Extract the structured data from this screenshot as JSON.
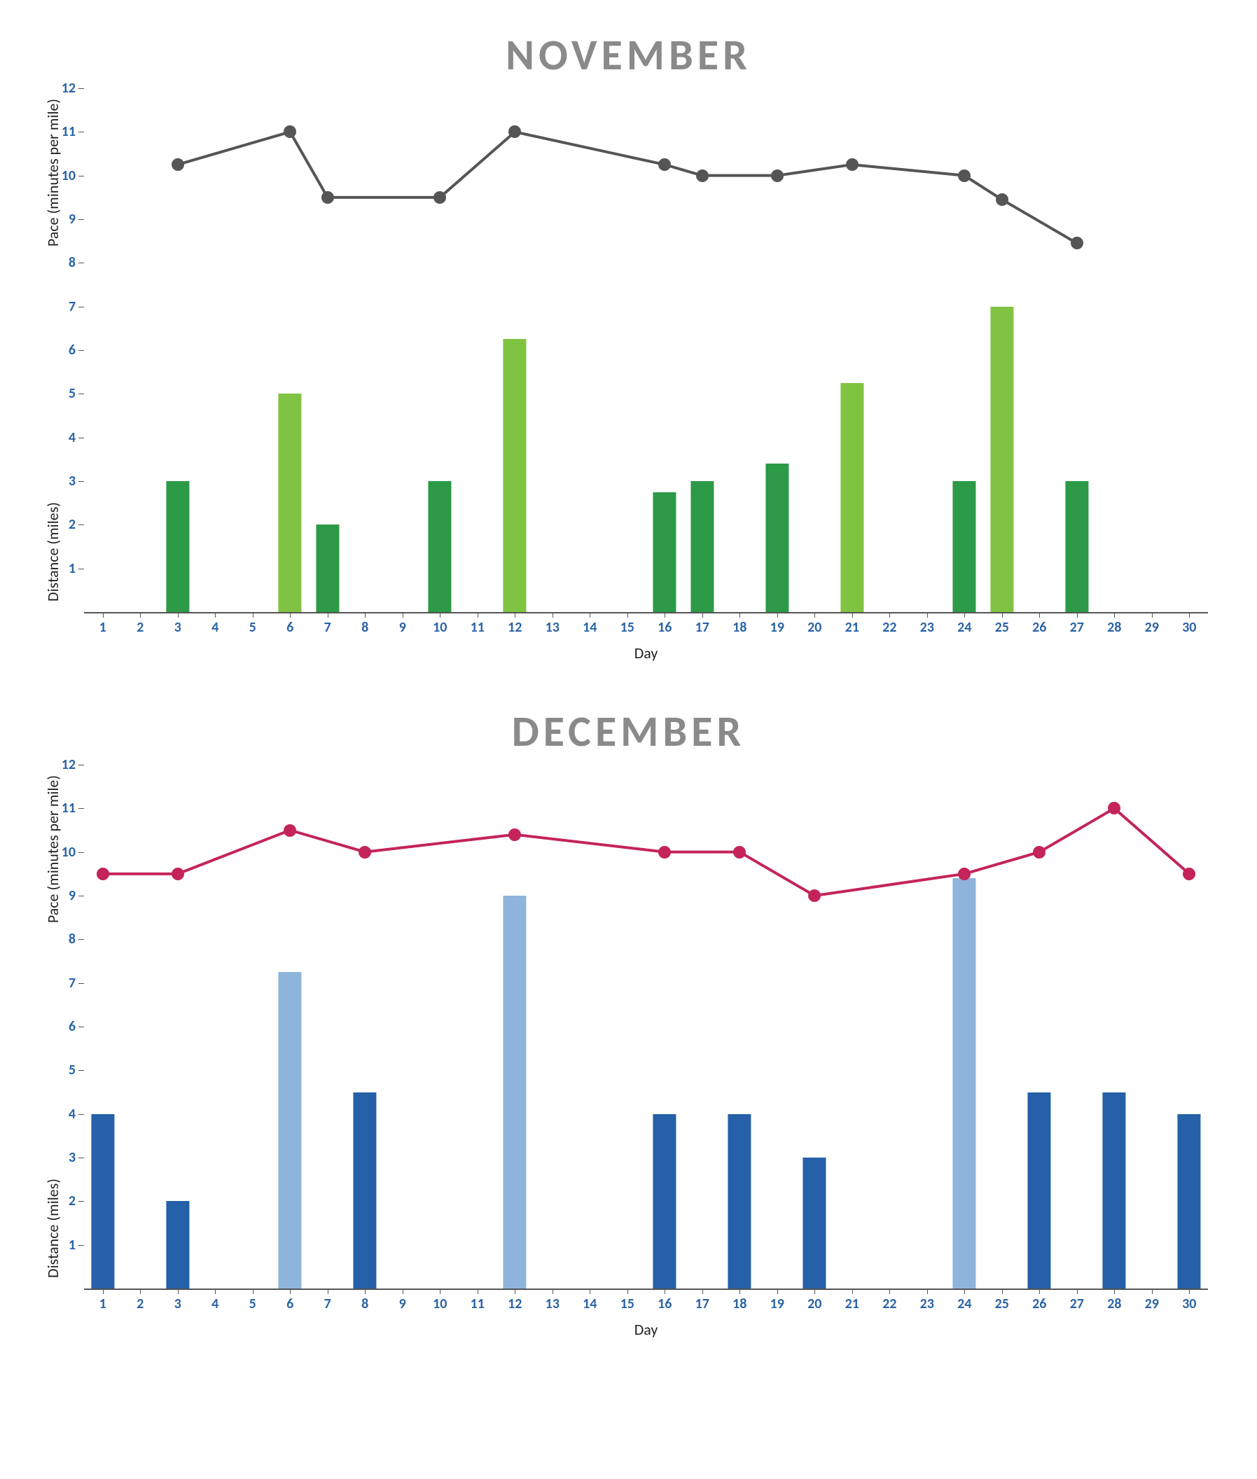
{
  "charts": [
    {
      "title": "NOVEMBER",
      "x_axis_label": "Day",
      "y_axis_label_lower": "Distance (miles)",
      "y_axis_label_upper": "Pace (minutes per mile)",
      "background_color": "#ffffff",
      "title_color": "#8a8a8a",
      "title_fontsize": 62,
      "tick_color": "#2a63a6",
      "tick_fontsize": 20,
      "axis_line_color": "#555555",
      "ylim": [
        0,
        12
      ],
      "y_ticks": [
        1,
        2,
        3,
        4,
        5,
        6,
        7,
        8,
        9,
        10,
        11,
        12
      ],
      "xlim": [
        0.5,
        30.5
      ],
      "x_ticks": [
        1,
        2,
        3,
        4,
        5,
        6,
        7,
        8,
        9,
        10,
        11,
        12,
        13,
        14,
        15,
        16,
        17,
        18,
        19,
        20,
        21,
        22,
        23,
        24,
        25,
        26,
        27,
        28,
        29,
        30
      ],
      "bar_width": 0.62,
      "bar_series": {
        "type": "bar",
        "colors": {
          "dark": "#2c9a47",
          "light": "#80c342"
        },
        "data": [
          {
            "day": 3,
            "value": 3,
            "color": "dark"
          },
          {
            "day": 6,
            "value": 5,
            "color": "light"
          },
          {
            "day": 7,
            "value": 2,
            "color": "dark"
          },
          {
            "day": 10,
            "value": 3,
            "color": "dark"
          },
          {
            "day": 12,
            "value": 6.25,
            "color": "light"
          },
          {
            "day": 16,
            "value": 2.75,
            "color": "dark"
          },
          {
            "day": 17,
            "value": 3,
            "color": "dark"
          },
          {
            "day": 19,
            "value": 3.4,
            "color": "dark"
          },
          {
            "day": 21,
            "value": 5.25,
            "color": "light"
          },
          {
            "day": 24,
            "value": 3,
            "color": "dark"
          },
          {
            "day": 25,
            "value": 7,
            "color": "light"
          },
          {
            "day": 27,
            "value": 3,
            "color": "dark"
          }
        ]
      },
      "line_series": {
        "type": "line",
        "line_color": "#555555",
        "line_width": 4,
        "marker_color": "#555555",
        "marker_radius": 9,
        "data": [
          {
            "day": 3,
            "value": 10.25
          },
          {
            "day": 6,
            "value": 11
          },
          {
            "day": 7,
            "value": 9.5
          },
          {
            "day": 10,
            "value": 9.5
          },
          {
            "day": 12,
            "value": 11
          },
          {
            "day": 16,
            "value": 10.25
          },
          {
            "day": 17,
            "value": 10
          },
          {
            "day": 19,
            "value": 10
          },
          {
            "day": 21,
            "value": 10.25
          },
          {
            "day": 24,
            "value": 10
          },
          {
            "day": 25,
            "value": 9.45
          },
          {
            "day": 27,
            "value": 8.45
          }
        ]
      }
    },
    {
      "title": "DECEMBER",
      "x_axis_label": "Day",
      "y_axis_label_lower": "Distance (miles)",
      "y_axis_label_upper": "Pace (minutes per mile)",
      "background_color": "#ffffff",
      "title_color": "#8a8a8a",
      "title_fontsize": 62,
      "tick_color": "#2a63a6",
      "tick_fontsize": 20,
      "axis_line_color": "#555555",
      "ylim": [
        0,
        12
      ],
      "y_ticks": [
        1,
        2,
        3,
        4,
        5,
        6,
        7,
        8,
        9,
        10,
        11,
        12
      ],
      "xlim": [
        0.5,
        30.5
      ],
      "x_ticks": [
        1,
        2,
        3,
        4,
        5,
        6,
        7,
        8,
        9,
        10,
        11,
        12,
        13,
        14,
        15,
        16,
        17,
        18,
        19,
        20,
        21,
        22,
        23,
        24,
        25,
        26,
        27,
        28,
        29,
        30
      ],
      "bar_width": 0.62,
      "bar_series": {
        "type": "bar",
        "colors": {
          "dark": "#2560a8",
          "light": "#8eb4dc"
        },
        "data": [
          {
            "day": 1,
            "value": 4,
            "color": "dark"
          },
          {
            "day": 3,
            "value": 2,
            "color": "dark"
          },
          {
            "day": 6,
            "value": 7.25,
            "color": "light"
          },
          {
            "day": 8,
            "value": 4.5,
            "color": "dark"
          },
          {
            "day": 12,
            "value": 9,
            "color": "light"
          },
          {
            "day": 16,
            "value": 4,
            "color": "dark"
          },
          {
            "day": 18,
            "value": 4,
            "color": "dark"
          },
          {
            "day": 20,
            "value": 3,
            "color": "dark"
          },
          {
            "day": 24,
            "value": 9.4,
            "color": "light"
          },
          {
            "day": 26,
            "value": 4.5,
            "color": "dark"
          },
          {
            "day": 28,
            "value": 4.5,
            "color": "dark"
          },
          {
            "day": 30,
            "value": 4,
            "color": "dark"
          }
        ]
      },
      "line_series": {
        "type": "line",
        "line_color": "#c4245a",
        "line_width": 4,
        "marker_color": "#c4245a",
        "marker_radius": 9,
        "data": [
          {
            "day": 1,
            "value": 9.5
          },
          {
            "day": 3,
            "value": 9.5
          },
          {
            "day": 6,
            "value": 10.5
          },
          {
            "day": 8,
            "value": 10
          },
          {
            "day": 12,
            "value": 10.4
          },
          {
            "day": 16,
            "value": 10
          },
          {
            "day": 18,
            "value": 10
          },
          {
            "day": 20,
            "value": 9.0
          },
          {
            "day": 24,
            "value": 9.5
          },
          {
            "day": 26,
            "value": 10
          },
          {
            "day": 28,
            "value": 11
          },
          {
            "day": 30,
            "value": 9.5
          }
        ]
      }
    }
  ]
}
